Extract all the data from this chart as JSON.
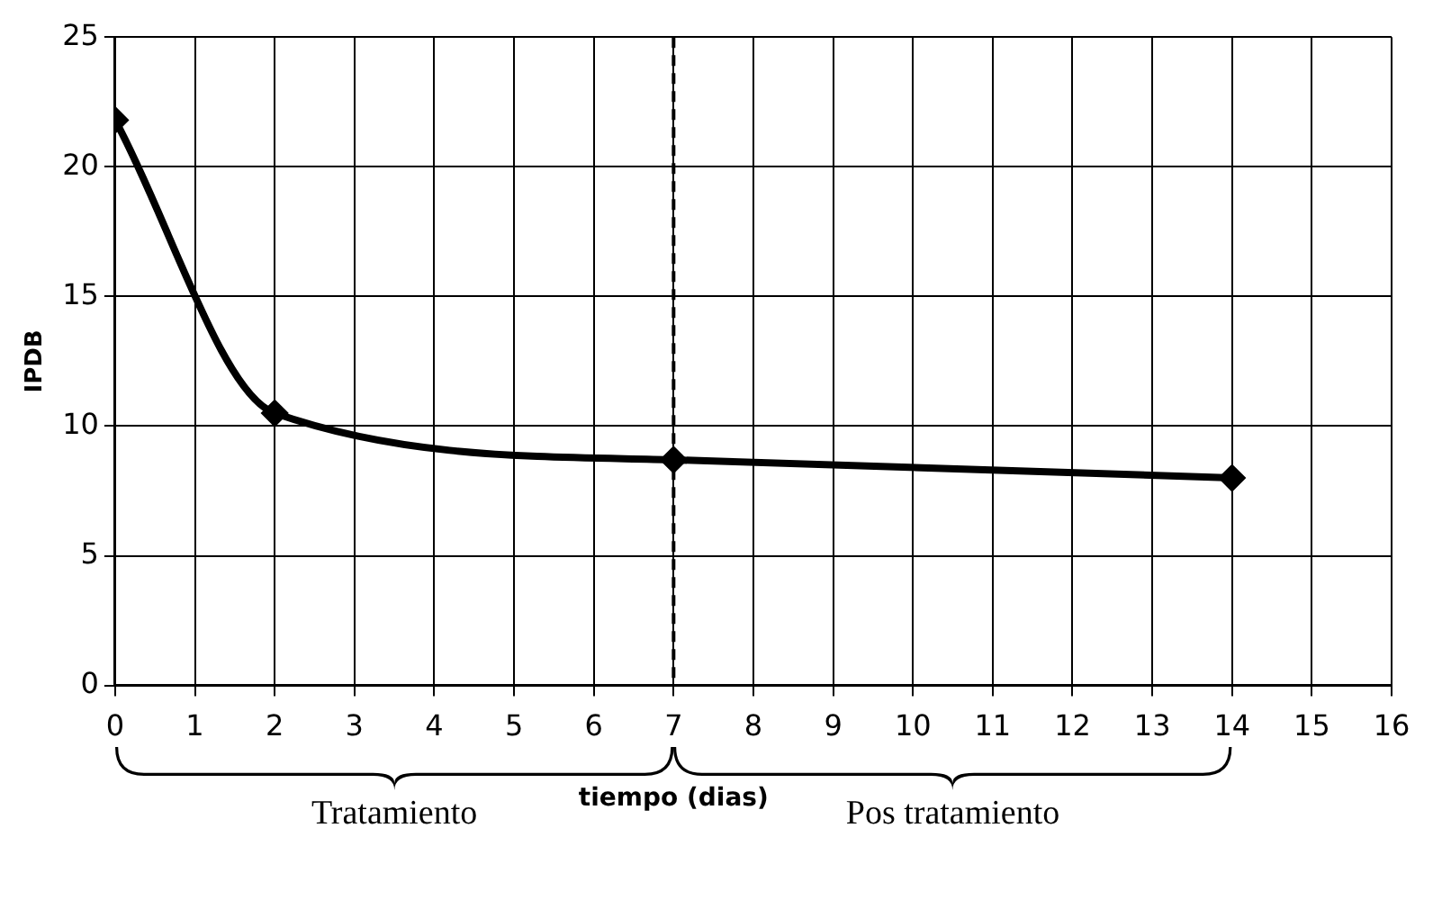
{
  "chart_data": {
    "type": "line",
    "xlabel": "tiempo (dias)",
    "ylabel": "IPDB",
    "x": [
      0,
      2,
      7,
      14
    ],
    "series": [
      {
        "color": "#000000",
        "values": [
          21.8,
          10.5,
          8.7,
          8.0
        ]
      }
    ],
    "xlim": [
      0,
      16
    ],
    "xticks": [
      0,
      1,
      2,
      3,
      4,
      5,
      6,
      7,
      8,
      9,
      10,
      11,
      12,
      13,
      14,
      15,
      16
    ],
    "ylim": [
      0,
      25
    ],
    "yticks": [
      0,
      5,
      10,
      15,
      20,
      25
    ],
    "grid": true,
    "marker": "diamond",
    "line_style": "solid",
    "ref_lines": [
      {
        "axis": "x",
        "value": 7,
        "color": "#000000",
        "line_style": "dashed"
      }
    ],
    "annotations": [
      "Tratamiento",
      "Pos tratamiento"
    ]
  }
}
